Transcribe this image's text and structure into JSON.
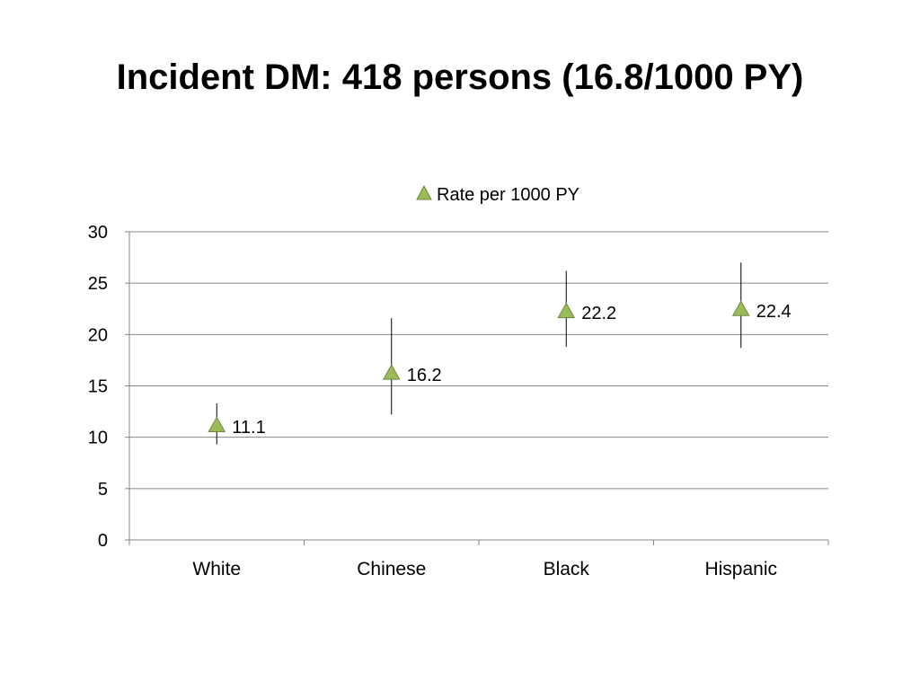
{
  "slide": {
    "title": "Incident DM: 418 persons (16.8/1000 PY)"
  },
  "chart_data": {
    "type": "scatter",
    "title": "",
    "xlabel": "",
    "ylabel": "",
    "categories": [
      "White",
      "Chinese",
      "Black",
      "Hispanic"
    ],
    "ylim": [
      0,
      30
    ],
    "yticks": [
      0,
      5,
      10,
      15,
      20,
      25,
      30
    ],
    "grid": true,
    "legend_position": "top",
    "marker": "triangle-icon",
    "colors": {
      "marker_fill": "#9BBB59",
      "marker_stroke": "#71893F",
      "error_bar": "#000000",
      "grid": "#868686",
      "axis": "#868686"
    },
    "series": [
      {
        "name": "Rate per 1000 PY",
        "values": [
          11.1,
          16.2,
          22.2,
          22.4
        ],
        "data_labels": [
          "11.1",
          "16.2",
          "22.2",
          "22.4"
        ],
        "error_low": [
          9.3,
          12.2,
          18.8,
          18.7
        ],
        "error_high": [
          13.3,
          21.6,
          26.2,
          27.0
        ]
      }
    ]
  }
}
